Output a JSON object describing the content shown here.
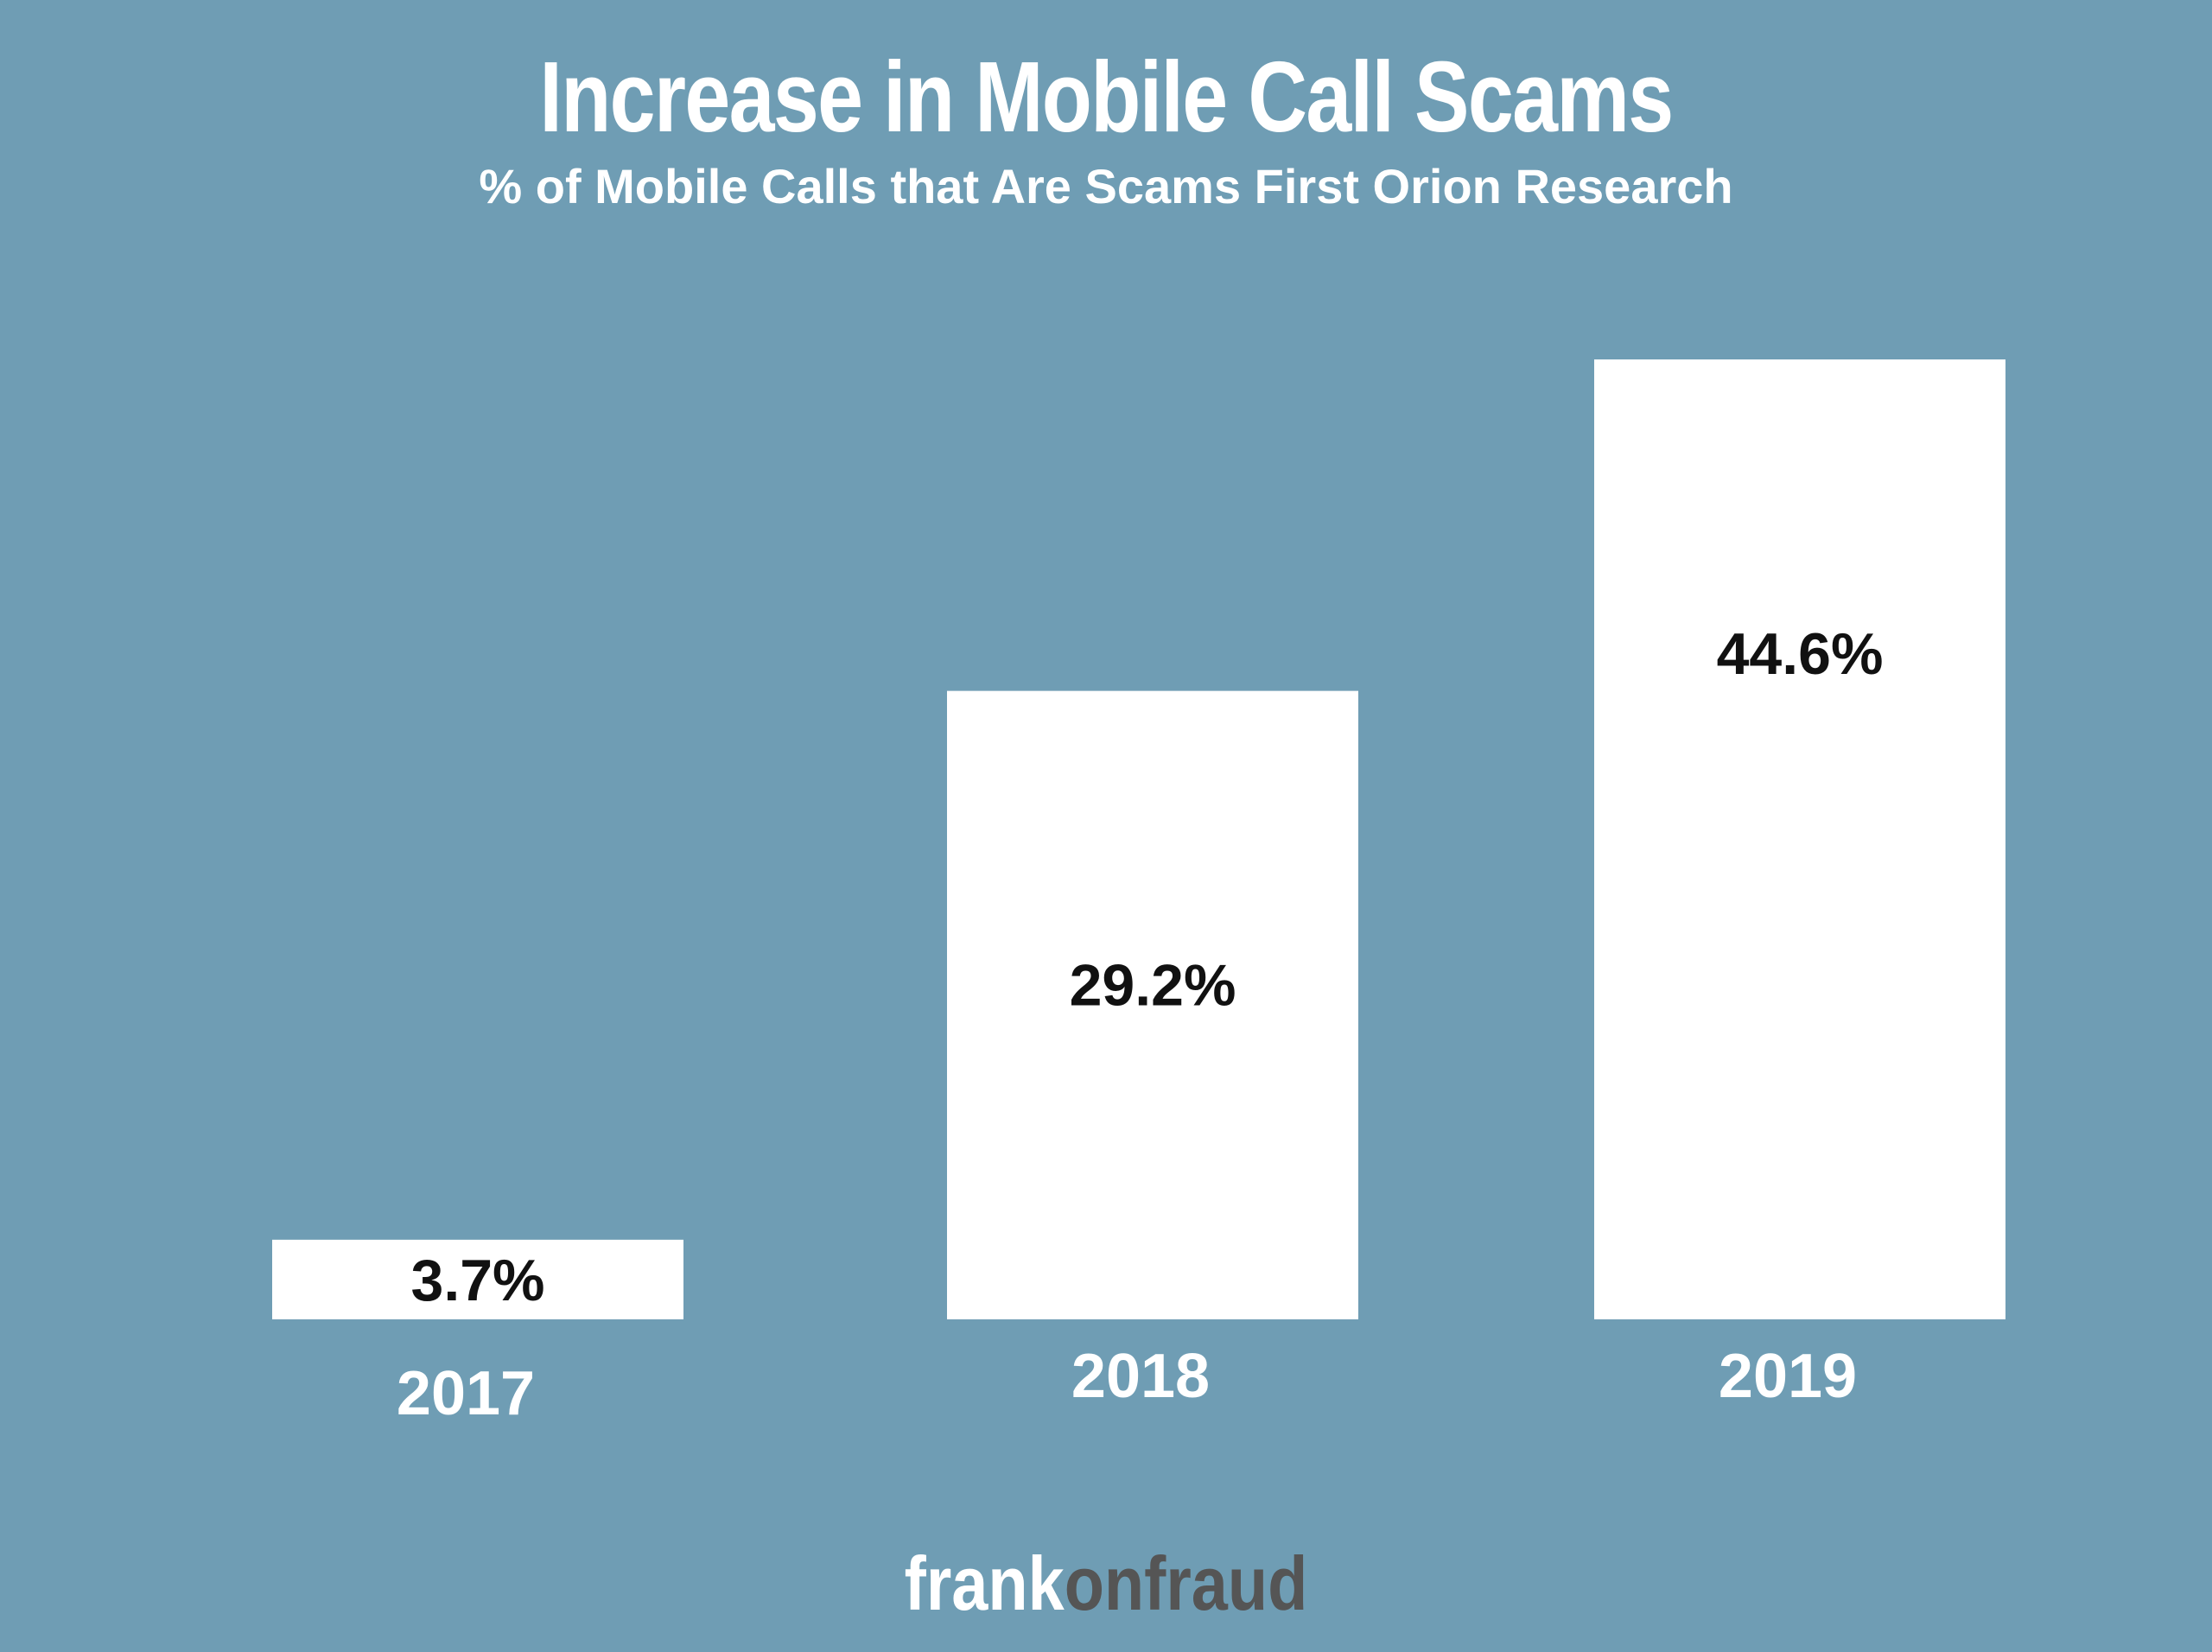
{
  "title": "Increase in Mobile Call Scams",
  "subtitle": "% of Mobile Calls that Are Scams First Orion Research",
  "logo": {
    "part1": "frank",
    "part2": "onfraud"
  },
  "colors": {
    "background": "#6f9db4",
    "bar": "#ffffff",
    "bar_label": "#111111",
    "tick_label": "#ffffff",
    "logo_part2": "#555555"
  },
  "chart_data": {
    "type": "bar",
    "categories": [
      "2017",
      "2018",
      "2019"
    ],
    "values": [
      3.7,
      29.2,
      44.6
    ],
    "data_labels": [
      "3.7%",
      "29.2%",
      "44.6%"
    ],
    "title": "Increase in Mobile Call Scams",
    "subtitle": "% of Mobile Calls that Are Scams First Orion Research",
    "xlabel": "",
    "ylabel": "",
    "ylim": [
      0,
      44.6
    ],
    "grid": false,
    "legend": "none"
  }
}
